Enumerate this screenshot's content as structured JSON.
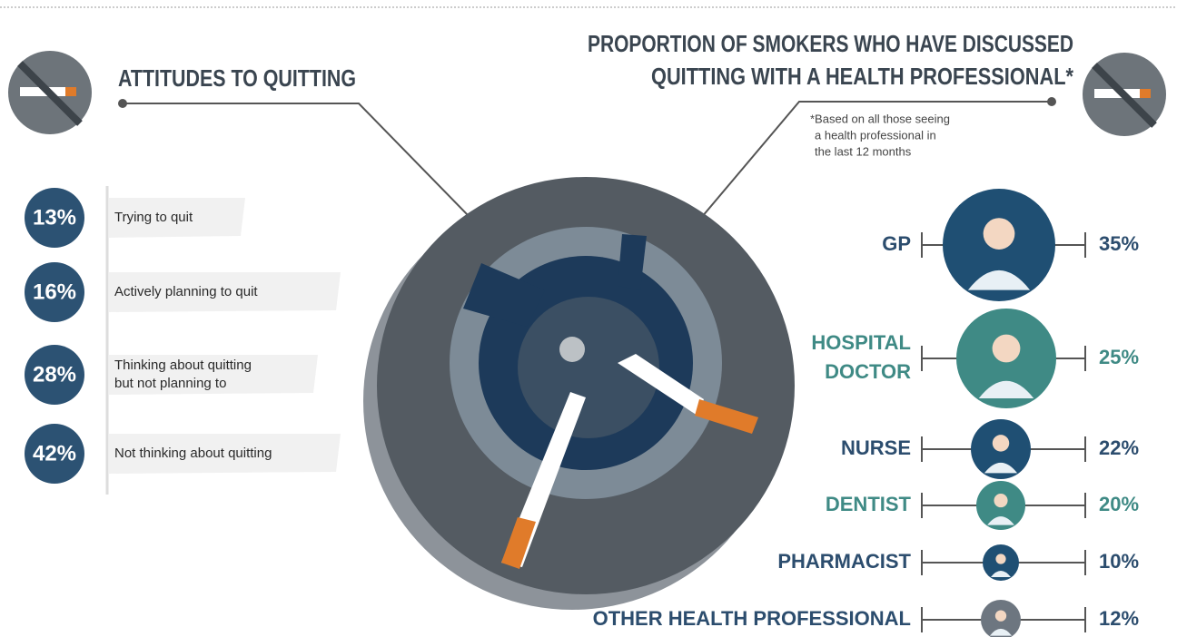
{
  "left": {
    "title": "ATTITUDES TO QUITTING",
    "items": [
      {
        "value": "13%",
        "label_lines": [
          "Trying to quit"
        ]
      },
      {
        "value": "16%",
        "label_lines": [
          "Actively planning to quit"
        ]
      },
      {
        "value": "28%",
        "label_lines": [
          "Thinking about quitting",
          "but not planning to"
        ]
      },
      {
        "value": "42%",
        "label_lines": [
          "Not thinking about quitting"
        ]
      }
    ]
  },
  "right": {
    "title_lines": [
      "PROPORTION OF SMOKERS WHO HAVE DISCUSSED",
      "QUITTING WITH A HEALTH PROFESSIONAL*"
    ],
    "note_lines": [
      "*Based on all those seeing",
      "a health professional in",
      "the last 12 months"
    ],
    "professionals": [
      {
        "label_lines": [
          "GP"
        ],
        "value": "35%"
      },
      {
        "label_lines": [
          "HOSPITAL",
          "DOCTOR"
        ],
        "value": "25%"
      },
      {
        "label_lines": [
          "NURSE"
        ],
        "value": "22%"
      },
      {
        "label_lines": [
          "DENTIST"
        ],
        "value": "20%"
      },
      {
        "label_lines": [
          "PHARMACIST"
        ],
        "value": "10%"
      },
      {
        "label_lines": [
          "OTHER HEALTH PROFESSIONAL"
        ],
        "value": "12%"
      }
    ]
  }
}
